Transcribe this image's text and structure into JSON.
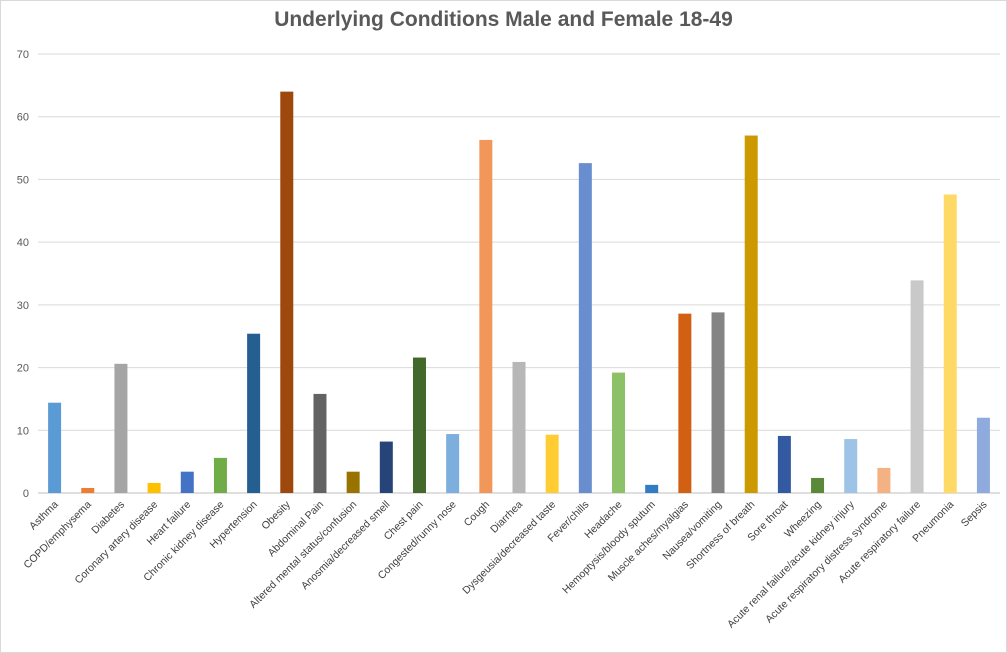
{
  "chart_data": {
    "type": "bar",
    "title": "Underlying Conditions Male and Female 18-49",
    "xlabel": "",
    "ylabel": "",
    "ylim": [
      0,
      70
    ],
    "yticks": [
      0,
      10,
      20,
      30,
      40,
      50,
      60,
      70
    ],
    "grid": true,
    "legend": "none",
    "categories": [
      "Asthma",
      "COPD/emphysema",
      "Diabetes",
      "Coronary artery disease",
      "Heart failure",
      "Chronic kidney disease",
      "Hypertension",
      "Obesity",
      "Abdominal Pain",
      "Altered mental status/confusion",
      "Anosmia/decreased smell",
      "Chest pain",
      "Congested/runny nose",
      "Cough",
      "Diarrhea",
      "Dysgeusia/decreased taste",
      "Fever/chills",
      "Headache",
      "Hemoptysis/bloody sputum",
      "Muscle aches/myalgias",
      "Nausea/vomiting",
      "Shortness of breath",
      "Sore throat",
      "Wheezing",
      "Acute renal failure/acute kidney injury",
      "Acute respiratory distress syndrome",
      "Acute respiratory failure",
      "Pneumonia",
      "Sepsis"
    ],
    "values": [
      14.4,
      0.8,
      20.6,
      1.6,
      3.4,
      5.6,
      25.4,
      64,
      15.8,
      3.4,
      8.2,
      21.6,
      9.4,
      56.3,
      20.9,
      9.3,
      52.6,
      19.2,
      1.3,
      28.6,
      28.8,
      57,
      9.1,
      2.4,
      8.6,
      4,
      33.9,
      47.6,
      12
    ],
    "colors": [
      "#5b9bd5",
      "#ed7d31",
      "#a5a5a5",
      "#ffc000",
      "#4472c4",
      "#70ad47",
      "#255e91",
      "#9e480e",
      "#636363",
      "#997300",
      "#264478",
      "#43682b",
      "#7cafdd",
      "#f1975a",
      "#b7b7b7",
      "#ffcd33",
      "#698ed0",
      "#8cc168",
      "#327dc2",
      "#d26012",
      "#848484",
      "#cc9a00",
      "#335aa1",
      "#5a8a39",
      "#9dc3e6",
      "#f4b183",
      "#c9c9c9",
      "#ffd966",
      "#8faadc"
    ]
  }
}
